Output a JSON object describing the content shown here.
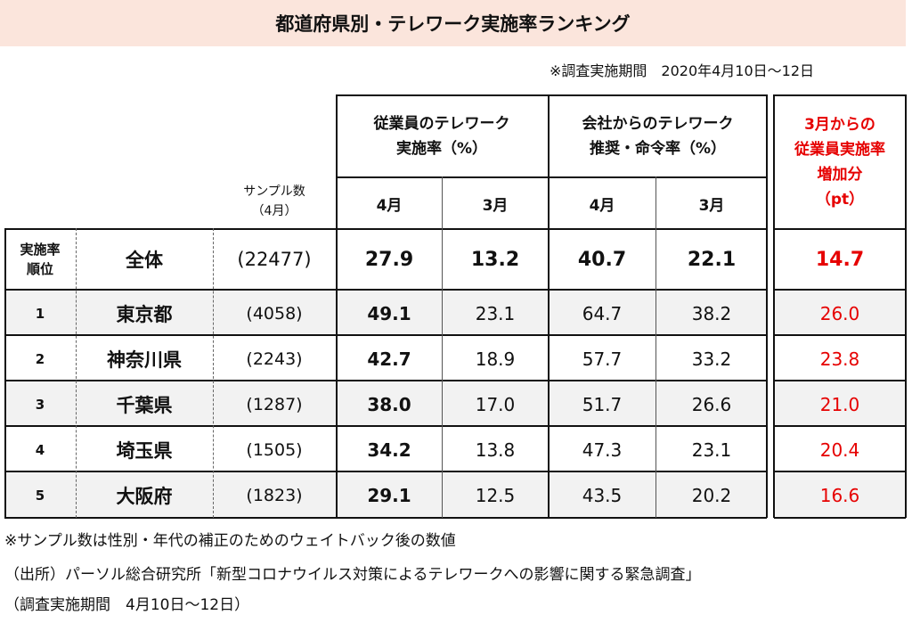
{
  "title": "都道府県別・テレワーク実施率ランキング",
  "survey_period_top": "※調査実施期間　2020年4月10日～12日",
  "headers": {
    "emp_group": [
      "従業員のテレワーク",
      "実施率（%）"
    ],
    "company_group": [
      "会社からのテレワーク",
      "推奨・命令率（%）"
    ],
    "increase_group": [
      "3月からの",
      "従業員実施率",
      "増加分",
      "（pt）"
    ],
    "sample": [
      "サンプル数",
      "（4月）"
    ],
    "months": [
      "4月",
      "3月",
      "4月",
      "3月"
    ]
  },
  "overall": {
    "rank_label": [
      "実施率",
      "順位"
    ],
    "name": "全体",
    "sample": "(22477)",
    "emp_apr": "27.9",
    "emp_mar": "13.2",
    "co_apr": "40.7",
    "co_mar": "22.1",
    "increase": "14.7"
  },
  "rows": [
    {
      "rank": "1",
      "name": "東京都",
      "sample": "(4058)",
      "emp_apr": "49.1",
      "emp_mar": "23.1",
      "co_apr": "64.7",
      "co_mar": "38.2",
      "increase": "26.0"
    },
    {
      "rank": "2",
      "name": "神奈川県",
      "sample": "(2243)",
      "emp_apr": "42.7",
      "emp_mar": "18.9",
      "co_apr": "57.7",
      "co_mar": "33.2",
      "increase": "23.8"
    },
    {
      "rank": "3",
      "name": "千葉県",
      "sample": "(1287)",
      "emp_apr": "38.0",
      "emp_mar": "17.0",
      "co_apr": "51.7",
      "co_mar": "26.6",
      "increase": "21.0"
    },
    {
      "rank": "4",
      "name": "埼玉県",
      "sample": "(1505)",
      "emp_apr": "34.2",
      "emp_mar": "13.8",
      "co_apr": "47.3",
      "co_mar": "23.1",
      "increase": "20.4"
    },
    {
      "rank": "5",
      "name": "大阪府",
      "sample": "(1823)",
      "emp_apr": "29.1",
      "emp_mar": "12.5",
      "co_apr": "43.5",
      "co_mar": "20.2",
      "increase": "16.6"
    }
  ],
  "notes": {
    "sample_note": "※サンプル数は性別・年代の補正のためのウェイトバック後の数値",
    "source": "（出所）パーソル総合研究所「新型コロナウイルス対策によるテレワークへの影響に関する緊急調査」",
    "period": "（調査実施期間　4月10日～12日）"
  },
  "colors": {
    "title_bg": "#fbe5dc",
    "row_shade": "#f2f2f2",
    "highlight": "#e60000"
  }
}
